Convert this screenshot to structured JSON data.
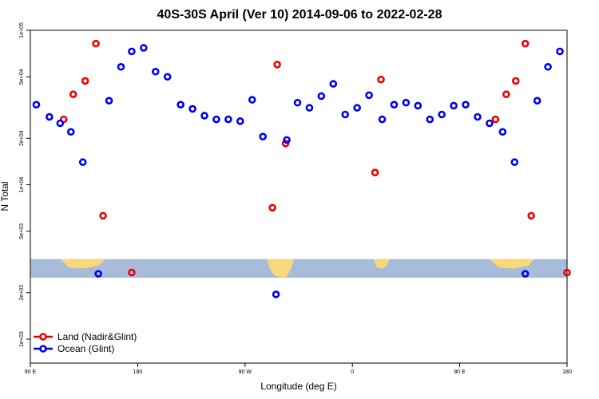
{
  "chart_data": {
    "type": "scatter",
    "title": "40S-30S April (Ver 10)   2014-09-06 to 2022-02-28",
    "xlabel": "Longitude (deg E)",
    "ylabel": "N Total",
    "x_scale": "longitude",
    "x_ticks": [
      {
        "value": 90,
        "label": "90 E"
      },
      {
        "value": 180,
        "label": "180"
      },
      {
        "value": 270,
        "label": "90 W"
      },
      {
        "value": 360,
        "label": "0"
      },
      {
        "value": 450,
        "label": "90 E"
      },
      {
        "value": 540,
        "label": "180"
      }
    ],
    "xlim": [
      90,
      540
    ],
    "y_scale": "log",
    "ylim": [
      700,
      100000
    ],
    "y_ticks": [
      {
        "value": 1000,
        "label": "1e+03"
      },
      {
        "value": 2000,
        "label": "2e+03"
      },
      {
        "value": 5000,
        "label": "5e+03"
      },
      {
        "value": 10000,
        "label": "1e+04"
      },
      {
        "value": 20000,
        "label": "2e+04"
      },
      {
        "value": 50000,
        "label": "5e+04"
      },
      {
        "value": 100000,
        "label": "1e+05"
      }
    ],
    "map_band": {
      "y_top": 3300,
      "y_bottom": 2500,
      "ocean_color": "#a8bcd9",
      "land_color": "#f8d878"
    },
    "grid": false,
    "legend": "bottom-left",
    "series": [
      {
        "name": "Land (Nadir&Glint)",
        "color": "#ee0000",
        "x": [
          118,
          126,
          136,
          145,
          151,
          175,
          293,
          297,
          304,
          379,
          384,
          480,
          489,
          497,
          505,
          510,
          540
        ],
        "y": [
          26500,
          38500,
          47000,
          82000,
          6300,
          2700,
          7100,
          60000,
          18500,
          12000,
          48000,
          26500,
          38500,
          47000,
          82000,
          6300,
          2700
        ]
      },
      {
        "name": "Ocean (Glint)",
        "color": "#0000ee",
        "x": [
          95,
          106,
          115,
          124,
          134,
          147,
          156,
          166,
          175,
          185,
          195,
          205,
          216,
          226,
          236,
          246,
          256,
          266,
          276,
          285,
          296,
          305,
          314,
          324,
          334,
          344,
          354,
          364,
          374,
          385,
          395,
          405,
          415,
          425,
          435,
          445,
          455,
          465,
          475,
          486,
          496,
          505,
          515,
          524,
          534
        ],
        "y": [
          33000,
          27500,
          25000,
          22000,
          14000,
          2650,
          35000,
          58000,
          73000,
          77000,
          54000,
          50000,
          33000,
          31000,
          28000,
          26500,
          26500,
          25800,
          35500,
          20500,
          1950,
          19500,
          34000,
          31500,
          37500,
          45000,
          28500,
          31500,
          38000,
          26500,
          33000,
          34000,
          32500,
          26500,
          28500,
          32500,
          33000,
          27500,
          25000,
          22000,
          14000,
          2650,
          35000,
          58000,
          73000
        ]
      }
    ]
  }
}
